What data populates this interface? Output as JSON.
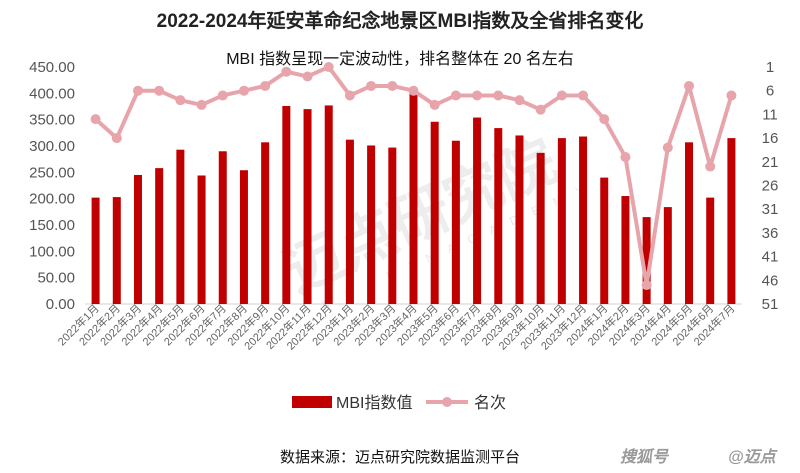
{
  "chart_data": {
    "type": "bar",
    "title": "2022-2024年延安革命纪念地景区MBI指数及全省排名变化",
    "subtitle": "MBI 指数呈现一定波动性，排名整体在 20 名左右",
    "categories": [
      "2022年1月",
      "2022年2月",
      "2022年3月",
      "2022年4月",
      "2022年5月",
      "2022年6月",
      "2022年7月",
      "2022年8月",
      "2022年9月",
      "2022年10月",
      "2022年11月",
      "2022年12月",
      "2023年1月",
      "2023年2月",
      "2023年3月",
      "2023年4月",
      "2023年5月",
      "2023年6月",
      "2023年7月",
      "2023年8月",
      "2023年9月",
      "2023年10月",
      "2023年11月",
      "2023年12月",
      "2024年1月",
      "2024年2月",
      "2024年3月",
      "2024年4月",
      "2024年5月",
      "2024年6月",
      "2024年7月"
    ],
    "series": [
      {
        "name": "MBI指数值",
        "type": "bar",
        "axis": "left",
        "color": "#c00000",
        "values": [
          202,
          203,
          245,
          258,
          293,
          244,
          290,
          254,
          307,
          376,
          370,
          377,
          312,
          301,
          297,
          401,
          346,
          310,
          354,
          334,
          320,
          287,
          315,
          318,
          240,
          205,
          165,
          184,
          307,
          202,
          315
        ]
      },
      {
        "name": "名次",
        "type": "line",
        "axis": "right",
        "color": "#e8a4ab",
        "values": [
          12,
          16,
          6,
          6,
          8,
          9,
          7,
          6,
          5,
          2,
          3,
          1,
          7,
          5,
          5,
          6,
          9,
          7,
          7,
          7,
          8,
          10,
          7,
          7,
          12,
          20,
          47,
          18,
          5,
          22,
          7
        ]
      }
    ],
    "left_axis": {
      "min": 0,
      "max": 450,
      "ticks": [
        "0.00",
        "50.00",
        "100.00",
        "150.00",
        "200.00",
        "250.00",
        "300.00",
        "350.00",
        "400.00",
        "450.00"
      ]
    },
    "right_axis": {
      "min": 1,
      "max": 51,
      "reversed": true,
      "ticks": [
        "1",
        "6",
        "11",
        "16",
        "21",
        "26",
        "31",
        "36",
        "41",
        "46",
        "51"
      ]
    },
    "grid": false,
    "legend_position": "bottom"
  },
  "source_text": "数据来源：迈点研究院数据监测平台",
  "watermark": {
    "text": "迈点研究院",
    "sub": "M E A D I N   A C A D E M Y"
  },
  "brand": {
    "name": "搜狐号",
    "handle": "@迈点"
  }
}
